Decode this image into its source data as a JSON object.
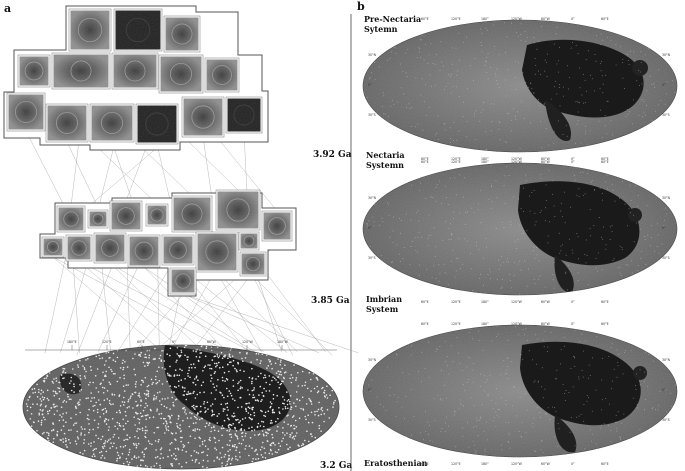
{
  "panel_a": {
    "letter": "a",
    "ages": [
      "3.92 Ga",
      "3.85 Ga",
      "3.2 Ga"
    ],
    "map_lon_labels": [
      "180°E",
      "120°E",
      "60°E",
      "0°",
      "60°W",
      "120°W",
      "180°W"
    ]
  },
  "panel_b": {
    "letter": "b",
    "systems": [
      {
        "line1": "Pre-Nectaria",
        "line2": "Sytemn"
      },
      {
        "line1": "Nectaria",
        "line2": "Systemn"
      },
      {
        "line1": "Imbrian",
        "line2": "System"
      },
      {
        "line1": "Eratosthenian",
        "line2": ""
      }
    ],
    "lon_labels": [
      "60°E",
      "120°E",
      "180°",
      "120°W",
      "60°W",
      "0°",
      "60°E"
    ],
    "lat_labels": [
      "30°N",
      "0°",
      "30°S",
      "30°N",
      "0°",
      "30°S"
    ]
  },
  "colors": {
    "mare": "#1c1c1c",
    "highland": "#7a7a7a",
    "crater_dots": "#e8e8e8",
    "frame": "#555555"
  }
}
